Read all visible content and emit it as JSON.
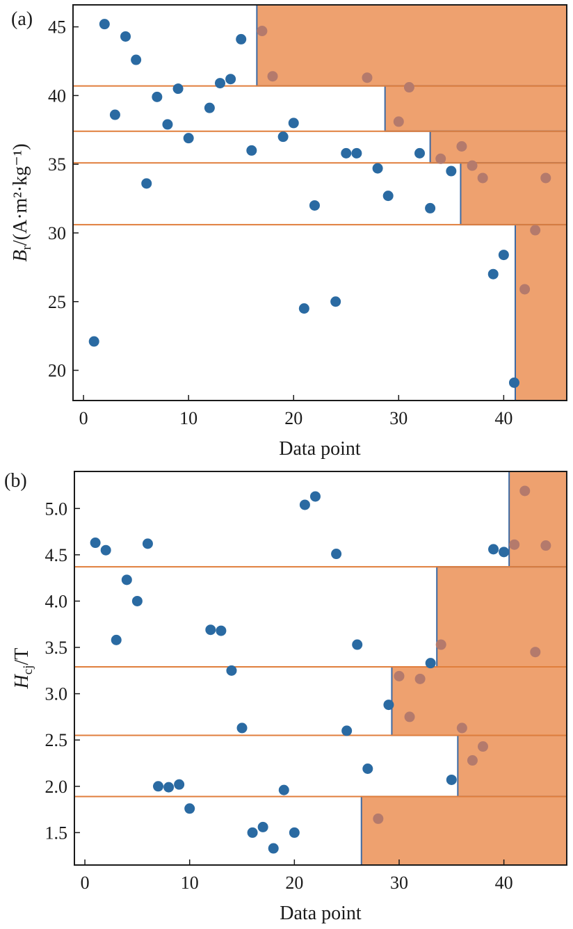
{
  "chart_data": [
    {
      "type": "scatter",
      "panel_label": "(a)",
      "xlabel": "Data point",
      "ylabel": {
        "symbol": "B",
        "sub": "r",
        "units": "/(A·m²·kg⁻¹)"
      },
      "xlim": [
        -1,
        46
      ],
      "ylim": [
        17.8,
        46.6
      ],
      "xticks": [
        0,
        10,
        20,
        30,
        40
      ],
      "yticks": [
        20,
        25,
        30,
        35,
        40,
        45
      ],
      "grid": false,
      "colors": {
        "point": "#2a6aa2",
        "region": "#eea16f",
        "threshold_line": "#e07e3c",
        "region_edge": "#3d6aa3"
      },
      "points": [
        {
          "x": 1,
          "y": 22.1
        },
        {
          "x": 2,
          "y": 45.2
        },
        {
          "x": 3,
          "y": 38.6
        },
        {
          "x": 4,
          "y": 44.3
        },
        {
          "x": 5,
          "y": 42.6
        },
        {
          "x": 6,
          "y": 33.6
        },
        {
          "x": 7,
          "y": 39.9
        },
        {
          "x": 8,
          "y": 37.9
        },
        {
          "x": 9,
          "y": 40.5
        },
        {
          "x": 10,
          "y": 36.9
        },
        {
          "x": 12,
          "y": 39.1
        },
        {
          "x": 13,
          "y": 40.9
        },
        {
          "x": 14,
          "y": 41.2
        },
        {
          "x": 15,
          "y": 44.1
        },
        {
          "x": 16,
          "y": 36.0
        },
        {
          "x": 17,
          "y": 44.7
        },
        {
          "x": 18,
          "y": 41.4
        },
        {
          "x": 19,
          "y": 37.0
        },
        {
          "x": 20,
          "y": 38.0
        },
        {
          "x": 21,
          "y": 24.5
        },
        {
          "x": 22,
          "y": 32.0
        },
        {
          "x": 24,
          "y": 25.0
        },
        {
          "x": 25,
          "y": 35.8
        },
        {
          "x": 26,
          "y": 35.8
        },
        {
          "x": 27,
          "y": 41.3
        },
        {
          "x": 28,
          "y": 34.7
        },
        {
          "x": 29,
          "y": 32.7
        },
        {
          "x": 30,
          "y": 38.1
        },
        {
          "x": 31,
          "y": 40.6
        },
        {
          "x": 32,
          "y": 35.8
        },
        {
          "x": 33,
          "y": 31.8
        },
        {
          "x": 34,
          "y": 35.4
        },
        {
          "x": 35,
          "y": 34.5
        },
        {
          "x": 36,
          "y": 36.3
        },
        {
          "x": 37,
          "y": 34.9
        },
        {
          "x": 38,
          "y": 34.0
        },
        {
          "x": 39,
          "y": 27.0
        },
        {
          "x": 40,
          "y": 28.4
        },
        {
          "x": 41,
          "y": 19.1
        },
        {
          "x": 42,
          "y": 25.9
        },
        {
          "x": 43,
          "y": 30.2
        },
        {
          "x": 44,
          "y": 34.0
        }
      ],
      "threshold_lines": [
        40.7,
        37.4,
        35.1,
        30.6
      ],
      "regions": [
        {
          "x0": 16.5,
          "y0": 40.7,
          "y1": 46.6
        },
        {
          "x0": 28.7,
          "y0": 37.4,
          "y1": 40.7
        },
        {
          "x0": 33.0,
          "y0": 35.1,
          "y1": 37.4
        },
        {
          "x0": 35.9,
          "y0": 30.6,
          "y1": 35.1
        },
        {
          "x0": 41.1,
          "y0": 17.8,
          "y1": 30.6
        }
      ]
    },
    {
      "type": "scatter",
      "panel_label": "(b)",
      "xlabel": "Data point",
      "ylabel": {
        "symbol": "H",
        "sub": "cj",
        "units": "/T"
      },
      "xlim": [
        -1,
        46
      ],
      "ylim": [
        1.15,
        5.4
      ],
      "xticks": [
        0,
        10,
        20,
        30,
        40
      ],
      "yticks": [
        1.5,
        2.0,
        2.5,
        3.0,
        3.5,
        4.0,
        4.5,
        5.0
      ],
      "grid": false,
      "colors": {
        "point": "#2a6aa2",
        "region": "#eea16f",
        "threshold_line": "#e07e3c",
        "region_edge": "#3d6aa3"
      },
      "points": [
        {
          "x": 1,
          "y": 4.63
        },
        {
          "x": 2,
          "y": 4.55
        },
        {
          "x": 3,
          "y": 3.58
        },
        {
          "x": 4,
          "y": 4.23
        },
        {
          "x": 5,
          "y": 4.0
        },
        {
          "x": 6,
          "y": 4.62
        },
        {
          "x": 7,
          "y": 2.0
        },
        {
          "x": 8,
          "y": 1.99
        },
        {
          "x": 9,
          "y": 2.02
        },
        {
          "x": 10,
          "y": 1.76
        },
        {
          "x": 12,
          "y": 3.69
        },
        {
          "x": 13,
          "y": 3.68
        },
        {
          "x": 14,
          "y": 3.25
        },
        {
          "x": 15,
          "y": 2.63
        },
        {
          "x": 16,
          "y": 1.5
        },
        {
          "x": 17,
          "y": 1.56
        },
        {
          "x": 18,
          "y": 1.33
        },
        {
          "x": 19,
          "y": 1.96
        },
        {
          "x": 20,
          "y": 1.5
        },
        {
          "x": 21,
          "y": 5.04
        },
        {
          "x": 22,
          "y": 5.13
        },
        {
          "x": 24,
          "y": 4.51
        },
        {
          "x": 25,
          "y": 2.6
        },
        {
          "x": 26,
          "y": 3.53
        },
        {
          "x": 27,
          "y": 2.19
        },
        {
          "x": 28,
          "y": 1.65
        },
        {
          "x": 29,
          "y": 2.88
        },
        {
          "x": 30,
          "y": 3.19
        },
        {
          "x": 31,
          "y": 2.75
        },
        {
          "x": 32,
          "y": 3.16
        },
        {
          "x": 33,
          "y": 3.33
        },
        {
          "x": 34,
          "y": 3.53
        },
        {
          "x": 35,
          "y": 2.07
        },
        {
          "x": 36,
          "y": 2.63
        },
        {
          "x": 37,
          "y": 2.28
        },
        {
          "x": 38,
          "y": 2.43
        },
        {
          "x": 39,
          "y": 4.56
        },
        {
          "x": 40,
          "y": 4.53
        },
        {
          "x": 41,
          "y": 4.61
        },
        {
          "x": 42,
          "y": 5.19
        },
        {
          "x": 43,
          "y": 3.45
        },
        {
          "x": 44,
          "y": 4.6
        }
      ],
      "threshold_lines": [
        4.37,
        3.29,
        2.55,
        1.89
      ],
      "regions": [
        {
          "x0": 40.5,
          "y0": 4.37,
          "y1": 5.4
        },
        {
          "x0": 33.6,
          "y0": 3.29,
          "y1": 4.37
        },
        {
          "x0": 29.3,
          "y0": 2.55,
          "y1": 3.29
        },
        {
          "x0": 35.6,
          "y0": 1.89,
          "y1": 2.55
        },
        {
          "x0": 26.4,
          "y0": 1.15,
          "y1": 1.89
        }
      ]
    }
  ]
}
